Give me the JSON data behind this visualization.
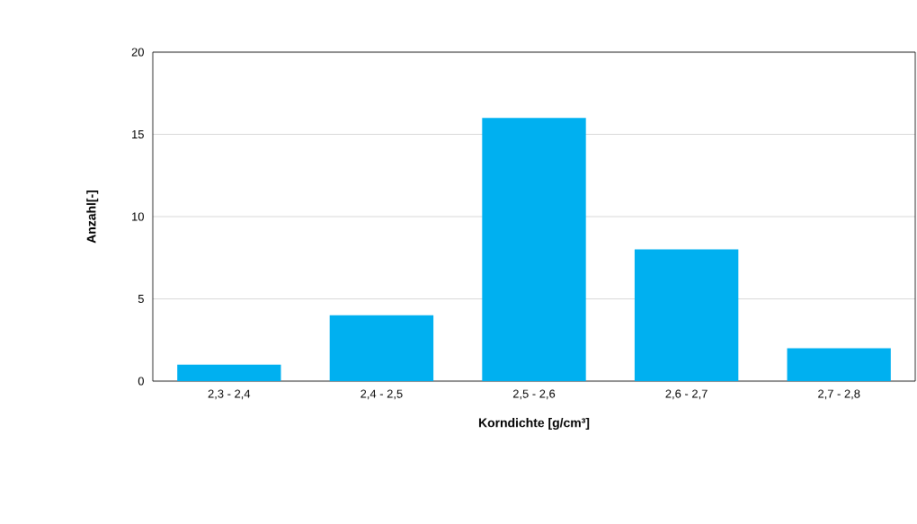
{
  "chart_data": {
    "type": "bar",
    "xlabel": "Korndichte [g/cm³]",
    "ylabel": "Anzahl[-]",
    "categories": [
      "2,3 - 2,4",
      "2,4 - 2,5",
      "2,5 - 2,6",
      "2,6 - 2,7",
      "2,7 - 2,8"
    ],
    "values": [
      1,
      4,
      16,
      8,
      2
    ],
    "color": "#00b0f0",
    "ylim": [
      0,
      20
    ],
    "yticks": [
      0,
      5,
      10,
      15,
      20
    ],
    "grid": "y"
  }
}
